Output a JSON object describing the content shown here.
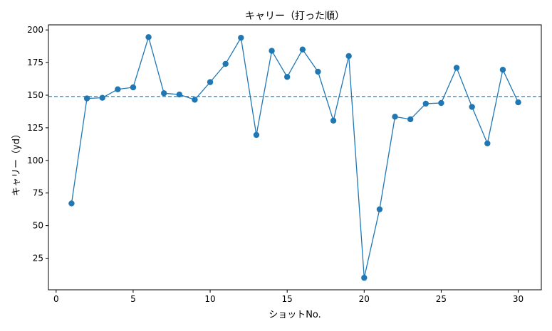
{
  "chart_data": {
    "type": "line",
    "title": "キャリー（打った順）",
    "xlabel": "ショットNo.",
    "ylabel": "キャリー（yd）",
    "x": [
      1,
      2,
      3,
      4,
      5,
      6,
      7,
      8,
      9,
      10,
      11,
      12,
      13,
      14,
      15,
      16,
      17,
      18,
      19,
      20,
      21,
      22,
      23,
      24,
      25,
      26,
      27,
      28,
      29,
      30
    ],
    "series": [
      {
        "values": [
          67,
          147.5,
          148,
          154.5,
          156,
          194.5,
          151.5,
          150.5,
          146.5,
          160,
          174,
          194,
          119.5,
          184,
          164,
          185,
          168,
          130.5,
          180,
          10,
          62.5,
          133.5,
          131.5,
          143.5,
          144,
          171,
          141,
          113,
          169.5,
          144.5
        ],
        "color": "#1f77b4"
      }
    ],
    "reference_line": {
      "y": 149,
      "color": "#1f77b4",
      "style": "dashed"
    },
    "xlim": [
      -0.5,
      31.5
    ],
    "ylim": [
      0.8,
      203.9
    ],
    "xticks": [
      "0",
      "5",
      "10",
      "15",
      "20",
      "25",
      "30"
    ],
    "yticks": [
      "25",
      "50",
      "75",
      "100",
      "125",
      "150",
      "175",
      "200"
    ],
    "grid": false
  }
}
